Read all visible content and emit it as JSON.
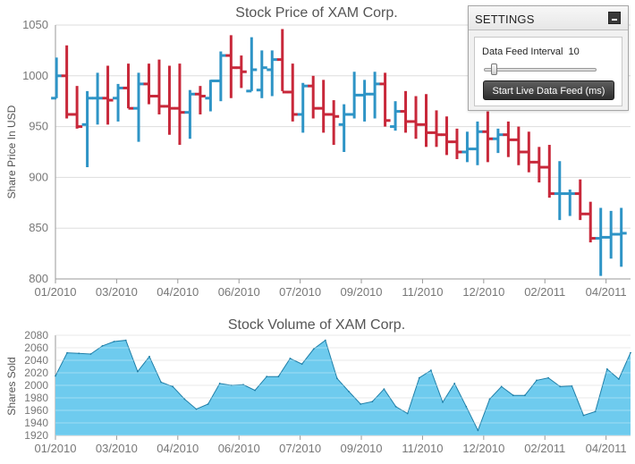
{
  "settings": {
    "title": "SETTINGS",
    "interval_label": "Data Feed Interval",
    "interval_value": "10",
    "interval_slider_level": 0.05,
    "button_label": "Start Live Data Feed (ms)"
  },
  "chart_data": [
    {
      "type": "ohlc",
      "title": "Stock Price of XAM Corp.",
      "xlabel": "",
      "ylabel": "Share Price In USD",
      "ylim": [
        800,
        1050
      ],
      "yticks": [
        800,
        850,
        900,
        950,
        1000,
        1050
      ],
      "xticks": [
        "01/2010",
        "03/2010",
        "04/2010",
        "06/2010",
        "07/2010",
        "09/2010",
        "11/2010",
        "12/2010",
        "02/2011",
        "04/2011"
      ],
      "grid": true,
      "up_color": "#2e94c6",
      "down_color": "#c8283a",
      "bars": [
        {
          "open": 978,
          "high": 1018,
          "low": 978,
          "close": 1000
        },
        {
          "open": 1000,
          "high": 1030,
          "low": 958,
          "close": 962
        },
        {
          "open": 962,
          "high": 990,
          "low": 948,
          "close": 950
        },
        {
          "open": 952,
          "high": 985,
          "low": 910,
          "close": 978
        },
        {
          "open": 978,
          "high": 1003,
          "low": 952,
          "close": 978
        },
        {
          "open": 978,
          "high": 1010,
          "low": 952,
          "close": 976
        },
        {
          "open": 978,
          "high": 992,
          "low": 955,
          "close": 988
        },
        {
          "open": 988,
          "high": 1012,
          "low": 968,
          "close": 968
        },
        {
          "open": 968,
          "high": 1003,
          "low": 935,
          "close": 992
        },
        {
          "open": 992,
          "high": 1012,
          "low": 972,
          "close": 980
        },
        {
          "open": 980,
          "high": 1016,
          "low": 962,
          "close": 970
        },
        {
          "open": 970,
          "high": 1010,
          "low": 942,
          "close": 968
        },
        {
          "open": 968,
          "high": 1012,
          "low": 932,
          "close": 964
        },
        {
          "open": 964,
          "high": 986,
          "low": 938,
          "close": 982
        },
        {
          "open": 982,
          "high": 990,
          "low": 962,
          "close": 980
        },
        {
          "open": 978,
          "high": 996,
          "low": 965,
          "close": 995
        },
        {
          "open": 995,
          "high": 1024,
          "low": 975,
          "close": 1020
        },
        {
          "open": 1020,
          "high": 1040,
          "low": 978,
          "close": 1008
        },
        {
          "open": 1008,
          "high": 1020,
          "low": 988,
          "close": 1004
        },
        {
          "open": 985,
          "high": 1038,
          "low": 985,
          "close": 1006
        },
        {
          "open": 986,
          "high": 1025,
          "low": 978,
          "close": 1008
        },
        {
          "open": 1006,
          "high": 1025,
          "low": 980,
          "close": 1016
        },
        {
          "open": 1016,
          "high": 1046,
          "low": 985,
          "close": 984
        },
        {
          "open": 984,
          "high": 1012,
          "low": 955,
          "close": 962
        },
        {
          "open": 962,
          "high": 993,
          "low": 944,
          "close": 990
        },
        {
          "open": 990,
          "high": 1000,
          "low": 958,
          "close": 968
        },
        {
          "open": 968,
          "high": 996,
          "low": 944,
          "close": 962
        },
        {
          "open": 962,
          "high": 976,
          "low": 932,
          "close": 960
        },
        {
          "open": 952,
          "high": 972,
          "low": 925,
          "close": 962
        },
        {
          "open": 962,
          "high": 1004,
          "low": 958,
          "close": 981
        },
        {
          "open": 981,
          "high": 996,
          "low": 955,
          "close": 982
        },
        {
          "open": 982,
          "high": 1004,
          "low": 958,
          "close": 992
        },
        {
          "open": 992,
          "high": 1003,
          "low": 950,
          "close": 956
        },
        {
          "open": 950,
          "high": 975,
          "low": 946,
          "close": 965
        },
        {
          "open": 965,
          "high": 985,
          "low": 944,
          "close": 955
        },
        {
          "open": 955,
          "high": 980,
          "low": 938,
          "close": 952
        },
        {
          "open": 952,
          "high": 982,
          "low": 930,
          "close": 944
        },
        {
          "open": 944,
          "high": 966,
          "low": 930,
          "close": 942
        },
        {
          "open": 942,
          "high": 960,
          "low": 922,
          "close": 935
        },
        {
          "open": 935,
          "high": 948,
          "low": 918,
          "close": 925
        },
        {
          "open": 925,
          "high": 945,
          "low": 915,
          "close": 928
        },
        {
          "open": 928,
          "high": 955,
          "low": 912,
          "close": 945
        },
        {
          "open": 945,
          "high": 965,
          "low": 915,
          "close": 938
        },
        {
          "open": 938,
          "high": 948,
          "low": 924,
          "close": 942
        },
        {
          "open": 942,
          "high": 955,
          "low": 920,
          "close": 937
        },
        {
          "open": 937,
          "high": 950,
          "low": 912,
          "close": 925
        },
        {
          "open": 925,
          "high": 945,
          "low": 905,
          "close": 915
        },
        {
          "open": 915,
          "high": 930,
          "low": 895,
          "close": 910
        },
        {
          "open": 910,
          "high": 932,
          "low": 880,
          "close": 884
        },
        {
          "open": 884,
          "high": 916,
          "low": 858,
          "close": 884
        },
        {
          "open": 884,
          "high": 888,
          "low": 862,
          "close": 884
        },
        {
          "open": 884,
          "high": 898,
          "low": 858,
          "close": 864
        },
        {
          "open": 864,
          "high": 876,
          "low": 836,
          "close": 840
        },
        {
          "open": 840,
          "high": 870,
          "low": 803,
          "close": 841
        },
        {
          "open": 841,
          "high": 867,
          "low": 820,
          "close": 844
        },
        {
          "open": 844,
          "high": 870,
          "low": 812,
          "close": 845
        }
      ]
    },
    {
      "type": "area",
      "title": "Stock Volume of XAM Corp.",
      "xlabel": "",
      "ylabel": "Shares Sold",
      "ylim": [
        1920,
        2080
      ],
      "yticks": [
        1920,
        1940,
        1960,
        1980,
        2000,
        2020,
        2040,
        2060,
        2080
      ],
      "xticks": [
        "01/2010",
        "03/2010",
        "04/2010",
        "06/2010",
        "07/2010",
        "09/2010",
        "11/2010",
        "12/2010",
        "02/2011",
        "04/2011"
      ],
      "grid": true,
      "fill_color": "#6ecbee",
      "line_color": "#1f7fa8",
      "values": [
        2015,
        2052,
        2051,
        2050,
        2063,
        2070,
        2072,
        2022,
        2046,
        2005,
        1998,
        1978,
        1962,
        1970,
        2003,
        2000,
        2001,
        1992,
        2014,
        2014,
        2043,
        2034,
        2058,
        2072,
        2011,
        1990,
        1970,
        1974,
        1994,
        1966,
        1955,
        2012,
        2024,
        1973,
        2003,
        1966,
        1928,
        1978,
        1998,
        1984,
        1984,
        2008,
        2012,
        1998,
        1999,
        1952,
        1958,
        2026,
        2010,
        2052
      ]
    }
  ]
}
